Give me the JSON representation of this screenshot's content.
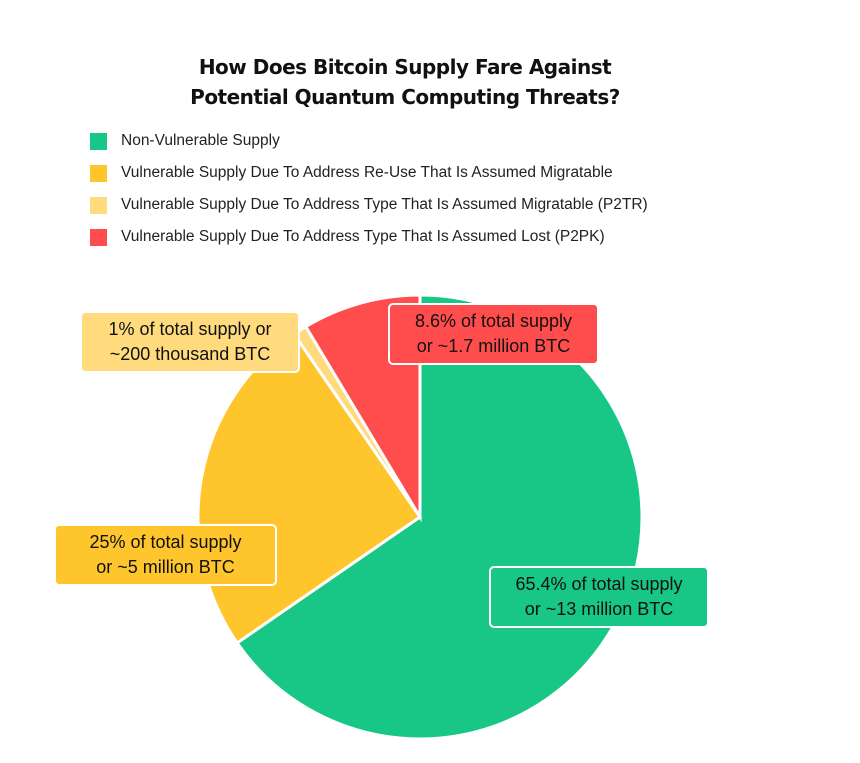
{
  "chart_data": {
    "type": "pie",
    "title": [
      "How Does Bitcoin Supply Fare Against",
      "Potential Quantum Computing Threats?"
    ],
    "legend_position": "top-left",
    "slices": [
      {
        "name": "Non-Vulnerable Supply",
        "value": 65.4,
        "color": "#18C685",
        "label": [
          "65.4% of total supply",
          "or ~13 million BTC"
        ]
      },
      {
        "name": "Vulnerable Supply Due To Address Re-Use That Is Assumed Migratable",
        "value": 25,
        "color": "#FFC52C",
        "label": [
          "25% of total supply",
          "or ~5 million BTC"
        ]
      },
      {
        "name": "Vulnerable Supply Due To Address Type That Is Assumed Migratable (P2TR)",
        "value": 1,
        "color": "#FFDB7E",
        "label": [
          "1% of total supply or",
          "~200 thousand BTC"
        ]
      },
      {
        "name": "Vulnerable Supply Due To Address Type That Is Assumed Lost (P2PK)",
        "value": 8.6,
        "color": "#FF4D4D",
        "label": [
          "8.6% of total supply",
          "or ~1.7 million BTC"
        ]
      }
    ]
  }
}
